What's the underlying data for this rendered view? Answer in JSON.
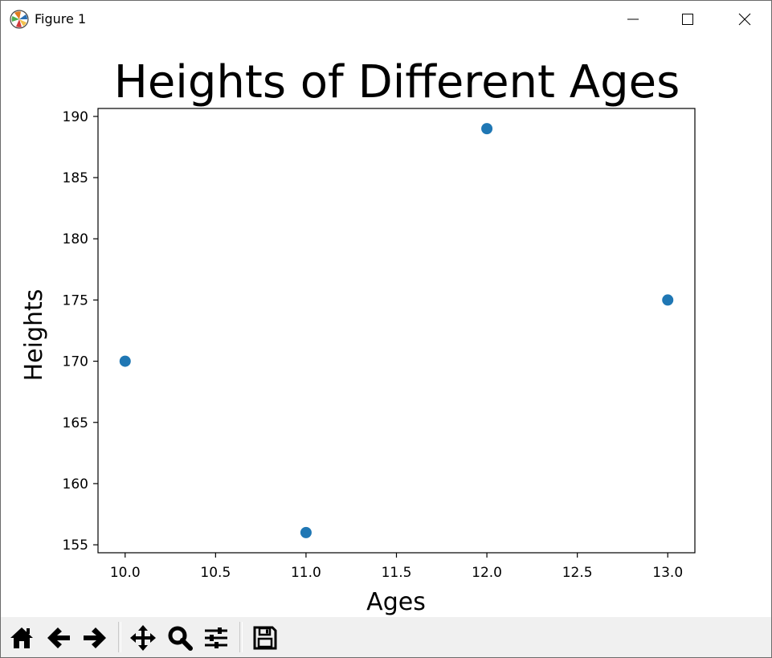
{
  "window": {
    "title": "Figure 1",
    "icons": {
      "app": "matplotlib-icon",
      "minimize": "minimize-icon",
      "maximize": "maximize-icon",
      "close": "close-icon"
    }
  },
  "toolbar": {
    "buttons": [
      {
        "name": "home-icon",
        "label": "Home"
      },
      {
        "name": "back-arrow-icon",
        "label": "Back"
      },
      {
        "name": "forward-arrow-icon",
        "label": "Forward"
      },
      {
        "name": "pan-icon",
        "label": "Pan"
      },
      {
        "name": "zoom-icon",
        "label": "Zoom"
      },
      {
        "name": "configure-subplots-icon",
        "label": "Subplots"
      },
      {
        "name": "save-icon",
        "label": "Save"
      }
    ]
  },
  "chart_data": {
    "type": "scatter",
    "title": "Heights of Different Ages",
    "xlabel": "Ages",
    "ylabel": "Heights",
    "x": [
      10,
      11,
      12,
      13
    ],
    "y": [
      170,
      156,
      189,
      175
    ],
    "xlim": [
      9.85,
      13.15
    ],
    "ylim": [
      154.35,
      190.65
    ],
    "xticks": [
      "10.0",
      "10.5",
      "11.0",
      "11.5",
      "12.0",
      "12.5",
      "13.0"
    ],
    "yticks": [
      "155",
      "160",
      "165",
      "170",
      "175",
      "180",
      "185",
      "190"
    ],
    "marker_color": "#1f77b4",
    "grid": false,
    "legend": "none"
  }
}
